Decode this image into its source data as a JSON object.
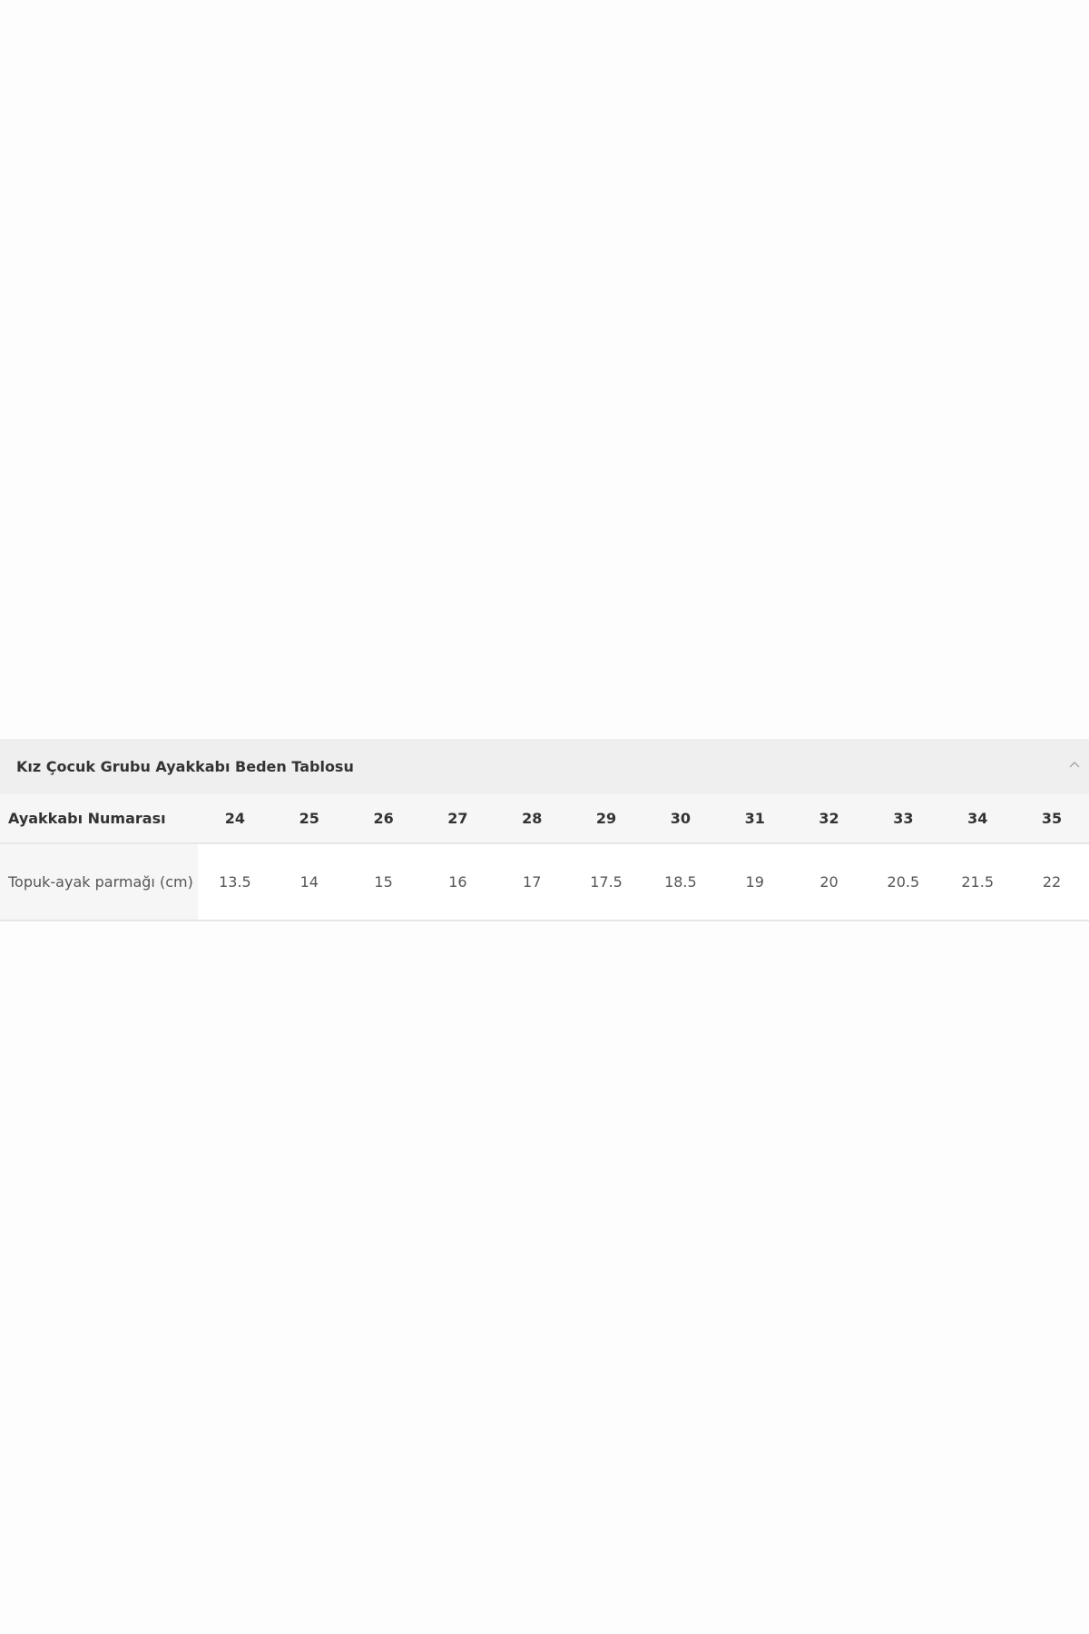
{
  "section": {
    "title": "Kız Çocuk Grubu Ayakkabı Beden Tablosu",
    "collapse_icon": "chevron-up-icon"
  },
  "table": {
    "row_headers": [
      "Ayakkabı Numarası",
      "Topuk-ayak parmağı (cm)"
    ],
    "sizes": [
      "24",
      "25",
      "26",
      "27",
      "28",
      "29",
      "30",
      "31",
      "32",
      "33",
      "34",
      "35"
    ],
    "lengths_cm": [
      "13.5",
      "14",
      "15",
      "16",
      "17",
      "17.5",
      "18.5",
      "19",
      "20",
      "20.5",
      "21.5",
      "22"
    ]
  }
}
